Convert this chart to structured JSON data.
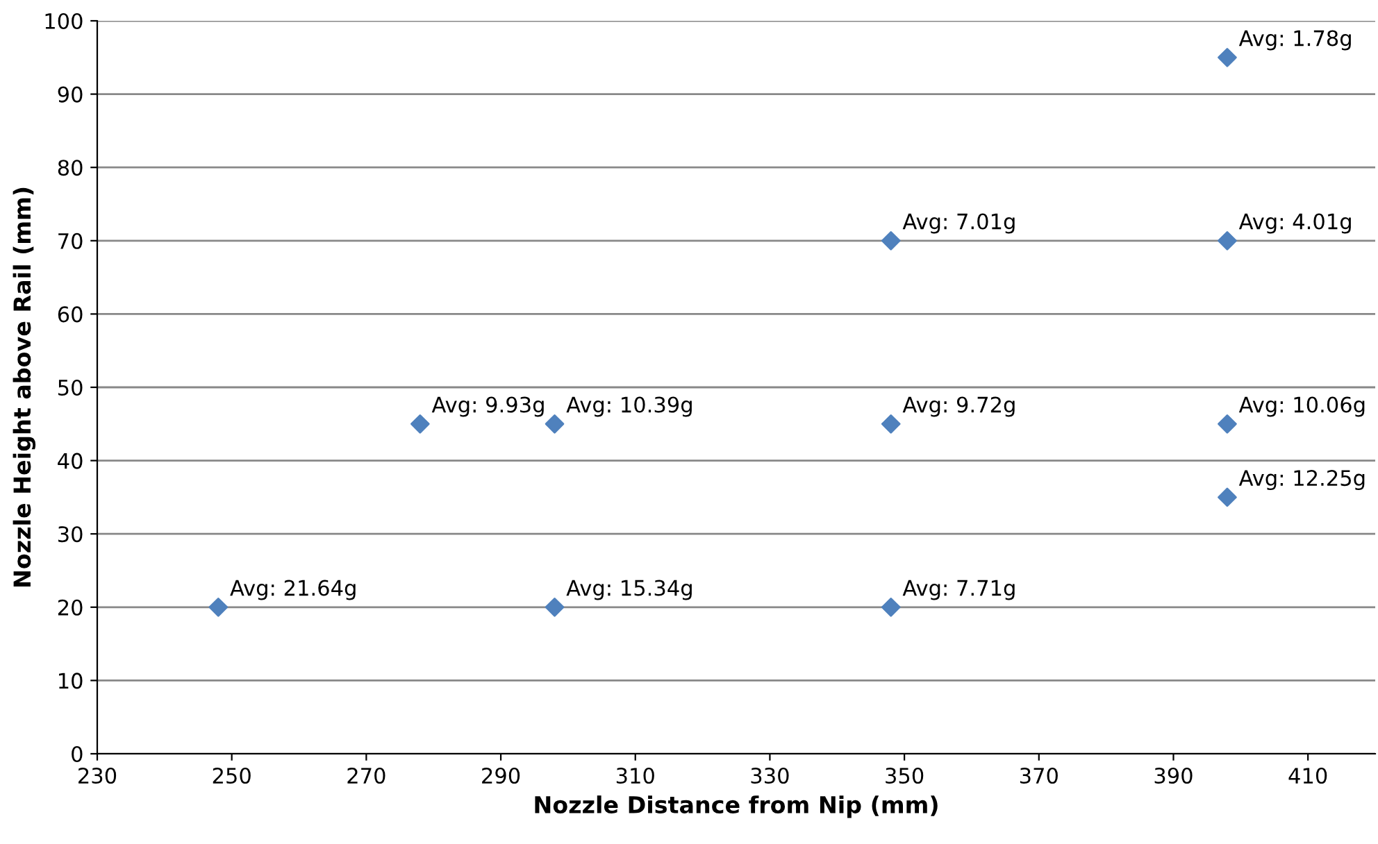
{
  "chart_data": {
    "type": "scatter",
    "xlabel": "Nozzle Distance from Nip (mm)",
    "ylabel": "Nozzle Height above Rail (mm)",
    "x": [
      248,
      278,
      298,
      298,
      348,
      348,
      348,
      398,
      398,
      398,
      398
    ],
    "series": [
      {
        "color": "#4f81bd",
        "values": [
          20,
          45,
          45,
          20,
          70,
          45,
          20,
          95,
          70,
          45,
          35
        ]
      }
    ],
    "marker": "diamond",
    "grid": "y",
    "legend": false,
    "xlim": [
      230,
      420
    ],
    "xticks": [
      230,
      250,
      270,
      290,
      310,
      330,
      350,
      370,
      390,
      410
    ],
    "ylim": [
      0,
      100
    ],
    "yticks": [
      0,
      10,
      20,
      30,
      40,
      50,
      60,
      70,
      80,
      90,
      100
    ],
    "annotations": [
      {
        "text": "Avg: 21.64g",
        "x": 248,
        "y": 20
      },
      {
        "text": "Avg: 9.93g",
        "x": 278,
        "y": 45
      },
      {
        "text": "Avg: 10.39g",
        "x": 298,
        "y": 45
      },
      {
        "text": "Avg: 15.34g",
        "x": 298,
        "y": 20
      },
      {
        "text": "Avg: 7.01g",
        "x": 348,
        "y": 70
      },
      {
        "text": "Avg: 9.72g",
        "x": 348,
        "y": 45
      },
      {
        "text": "Avg: 7.71g",
        "x": 348,
        "y": 20
      },
      {
        "text": "Avg: 1.78g",
        "x": 398,
        "y": 95
      },
      {
        "text": "Avg: 4.01g",
        "x": 398,
        "y": 70
      },
      {
        "text": "Avg: 10.06g",
        "x": 398,
        "y": 45
      },
      {
        "text": "Avg: 12.25g",
        "x": 398,
        "y": 35
      }
    ]
  }
}
